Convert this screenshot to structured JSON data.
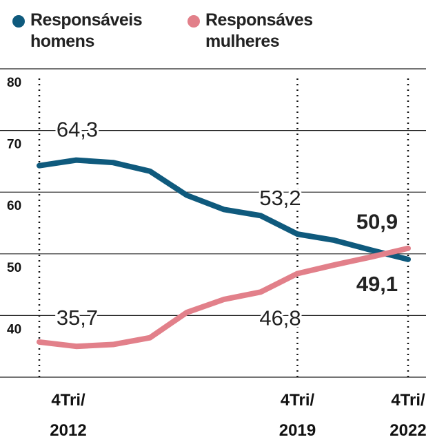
{
  "chart_data": {
    "type": "line",
    "categories": [
      "4Tri/\n2012",
      null,
      null,
      null,
      null,
      null,
      null,
      "4Tri/\n2019",
      null,
      null,
      "4Tri/\n2022"
    ],
    "series": [
      {
        "name": "Responsáveis homens",
        "color": "#0f5a7d",
        "values": [
          64.3,
          65.2,
          64.8,
          63.4,
          59.5,
          57.2,
          56.2,
          53.2,
          52.2,
          50.6,
          49.1
        ],
        "value_labels": [
          "64,3",
          null,
          null,
          null,
          null,
          null,
          null,
          "53,2",
          null,
          null,
          "49,1"
        ]
      },
      {
        "name": "Responsáves mulheres",
        "color": "#e2808a",
        "values": [
          35.7,
          35.0,
          35.3,
          36.4,
          40.5,
          42.6,
          43.8,
          46.8,
          48.2,
          49.5,
          50.9
        ],
        "value_labels": [
          "35,7",
          null,
          null,
          null,
          null,
          null,
          null,
          "46,8",
          null,
          null,
          "50,9"
        ]
      }
    ],
    "ylim": [
      30,
      80
    ],
    "yticks": [
      40,
      50,
      60,
      70,
      80
    ],
    "grid": true
  }
}
